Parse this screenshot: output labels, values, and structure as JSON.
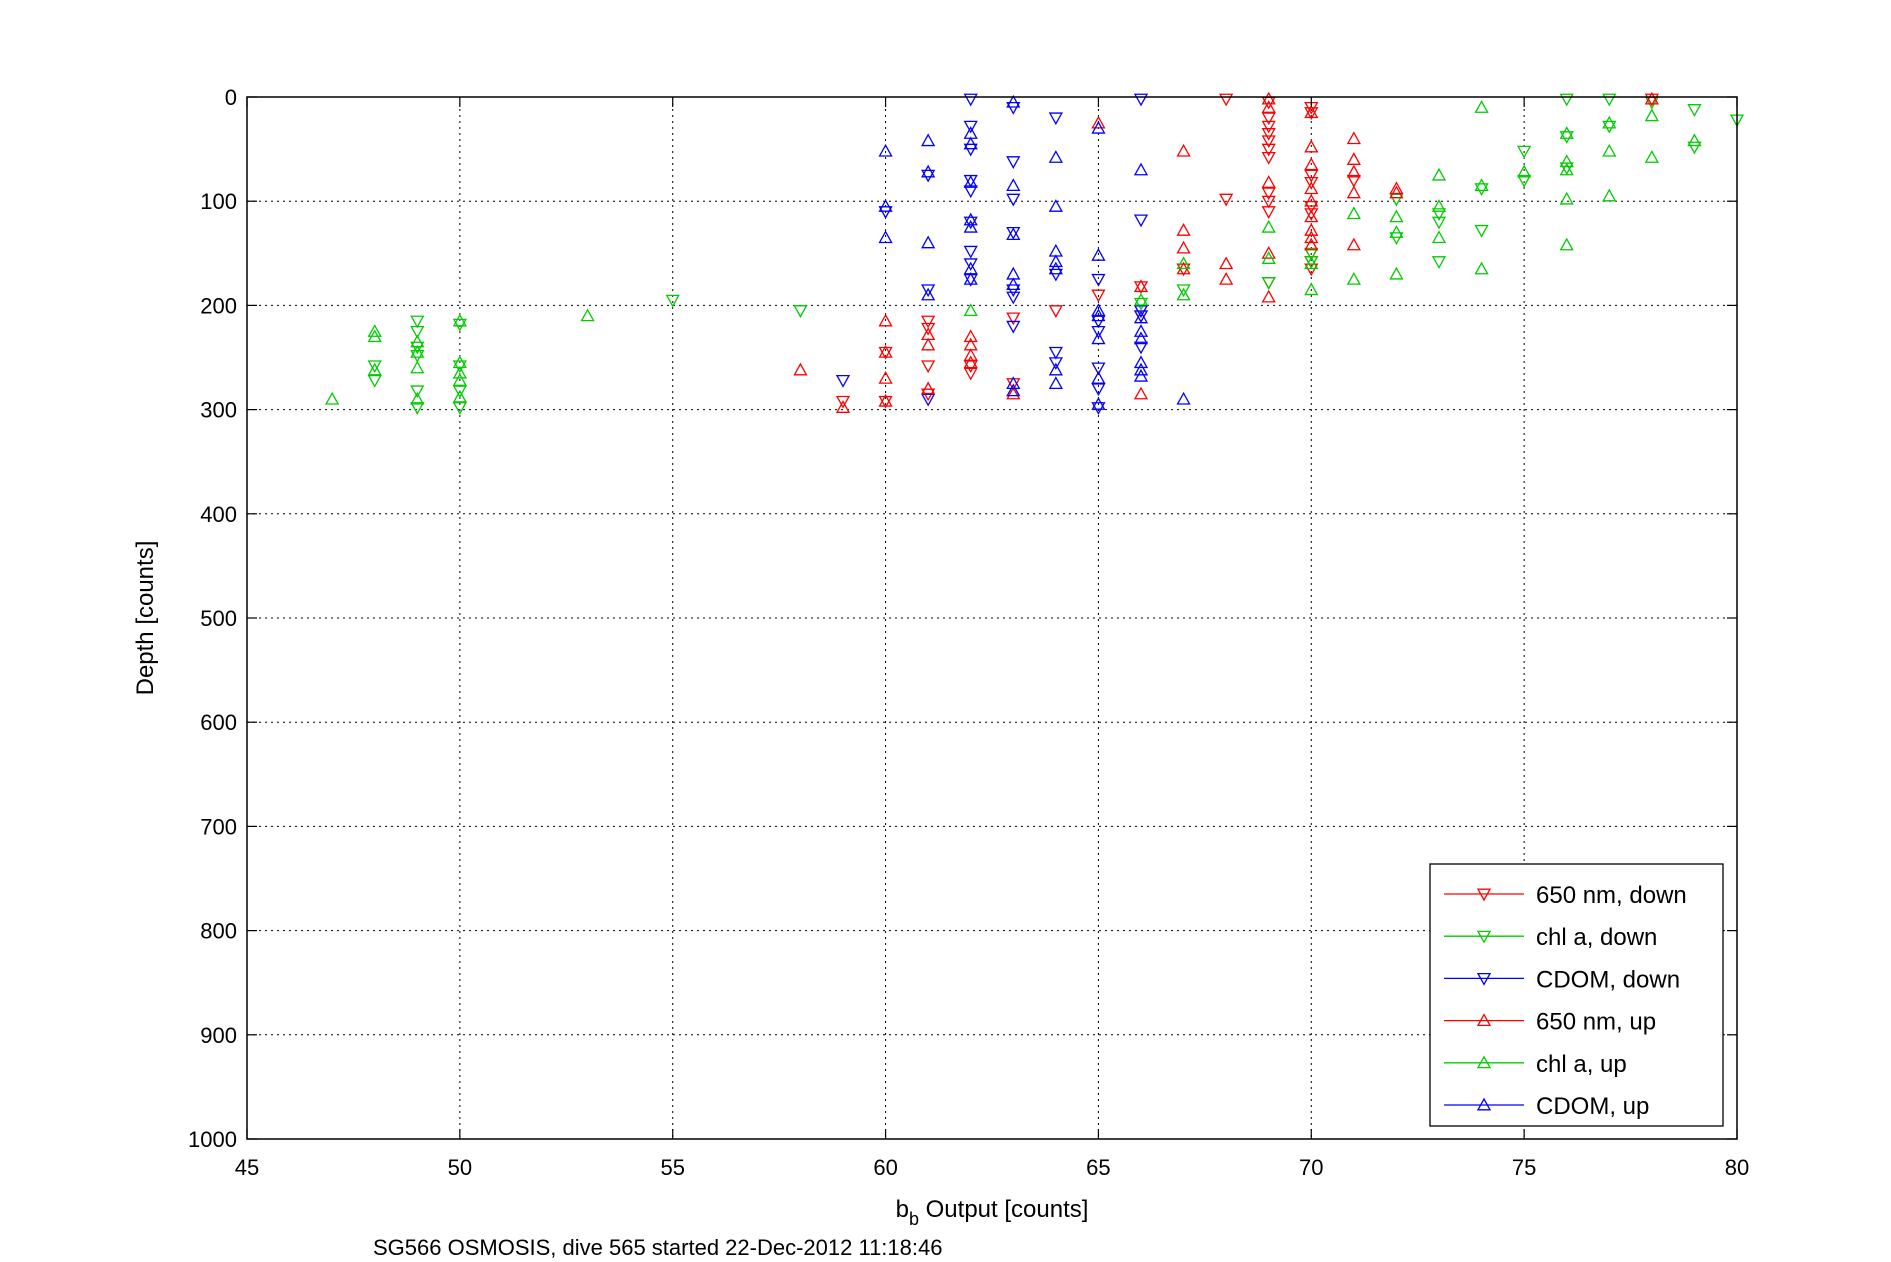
{
  "chart_data": {
    "type": "scatter",
    "title": "",
    "xlabel_main": "b",
    "xlabel_sub": "b",
    "xlabel_rest": " Output [counts]",
    "ylabel": "Depth [counts]",
    "caption": "SG566 OSMOSIS, dive 565 started 22-Dec-2012 11:18:46",
    "xlim": [
      45,
      80
    ],
    "ylim": [
      0,
      1000
    ],
    "y_reversed": true,
    "grid": true,
    "legend_placement": "bottom-right",
    "x_ticks": [
      45,
      50,
      55,
      60,
      65,
      70,
      75,
      80
    ],
    "y_ticks": [
      0,
      100,
      200,
      300,
      400,
      500,
      600,
      700,
      800,
      900,
      1000
    ],
    "series": [
      {
        "name": "650 nm, down",
        "color": "#ff0000",
        "marker": "triangle-down",
        "points": [
          [
            78,
            2
          ],
          [
            68,
            2
          ],
          [
            69,
            5
          ],
          [
            70,
            10
          ],
          [
            70,
            15
          ],
          [
            69,
            20
          ],
          [
            69,
            28
          ],
          [
            69,
            35
          ],
          [
            69,
            42
          ],
          [
            69,
            50
          ],
          [
            69,
            58
          ],
          [
            70,
            75
          ],
          [
            70,
            82
          ],
          [
            71,
            80
          ],
          [
            69,
            92
          ],
          [
            69,
            100
          ],
          [
            70,
            105
          ],
          [
            70,
            112
          ],
          [
            68,
            98
          ],
          [
            69,
            110
          ],
          [
            70,
            150
          ],
          [
            70,
            158
          ],
          [
            70,
            165
          ],
          [
            69,
            178
          ],
          [
            66,
            182
          ],
          [
            65,
            190
          ],
          [
            64,
            205
          ],
          [
            61,
            215
          ],
          [
            61,
            222
          ],
          [
            60,
            245
          ],
          [
            61,
            258
          ],
          [
            62,
            258
          ],
          [
            62,
            265
          ],
          [
            61,
            285
          ],
          [
            60,
            292
          ],
          [
            59,
            292
          ],
          [
            63,
            275
          ],
          [
            63,
            212
          ],
          [
            66,
            205
          ],
          [
            66,
            210
          ],
          [
            67,
            165
          ]
        ]
      },
      {
        "name": "chl a, down",
        "color": "#00cc00",
        "marker": "triangle-down",
        "points": [
          [
            77,
            2
          ],
          [
            76,
            2
          ],
          [
            78,
            5
          ],
          [
            79,
            12
          ],
          [
            80,
            22
          ],
          [
            77,
            28
          ],
          [
            76,
            38
          ],
          [
            79,
            48
          ],
          [
            75,
            52
          ],
          [
            76,
            68
          ],
          [
            75,
            80
          ],
          [
            74,
            88
          ],
          [
            73,
            112
          ],
          [
            72,
            98
          ],
          [
            73,
            120
          ],
          [
            74,
            128
          ],
          [
            73,
            158
          ],
          [
            72,
            135
          ],
          [
            70,
            150
          ],
          [
            70,
            158
          ],
          [
            69,
            178
          ],
          [
            67,
            185
          ],
          [
            66,
            198
          ],
          [
            58,
            205
          ],
          [
            55,
            195
          ],
          [
            50,
            218
          ],
          [
            49,
            215
          ],
          [
            49,
            225
          ],
          [
            49,
            240
          ],
          [
            49,
            248
          ],
          [
            48,
            258
          ],
          [
            48,
            272
          ],
          [
            50,
            258
          ],
          [
            50,
            282
          ],
          [
            49,
            282
          ],
          [
            49,
            298
          ],
          [
            50,
            298
          ]
        ]
      },
      {
        "name": "CDOM, down",
        "color": "#0000ff",
        "marker": "triangle-down",
        "points": [
          [
            62,
            2
          ],
          [
            63,
            10
          ],
          [
            62,
            28
          ],
          [
            62,
            50
          ],
          [
            64,
            20
          ],
          [
            63,
            62
          ],
          [
            62,
            80
          ],
          [
            62,
            90
          ],
          [
            61,
            75
          ],
          [
            63,
            98
          ],
          [
            62,
            120
          ],
          [
            63,
            130
          ],
          [
            62,
            148
          ],
          [
            62,
            160
          ],
          [
            64,
            170
          ],
          [
            63,
            185
          ],
          [
            63,
            192
          ],
          [
            63,
            220
          ],
          [
            61,
            185
          ],
          [
            60,
            110
          ],
          [
            62,
            175
          ],
          [
            65,
            175
          ],
          [
            65,
            215
          ],
          [
            65,
            225
          ],
          [
            66,
            240
          ],
          [
            66,
            205
          ],
          [
            66,
            210
          ],
          [
            65,
            260
          ],
          [
            65,
            280
          ],
          [
            65,
            298
          ],
          [
            64,
            245
          ],
          [
            64,
            255
          ],
          [
            59,
            272
          ],
          [
            61,
            290
          ],
          [
            66,
            2
          ],
          [
            66,
            118
          ]
        ]
      },
      {
        "name": "650 nm, up",
        "color": "#ff0000",
        "marker": "triangle-up",
        "points": [
          [
            78,
            2
          ],
          [
            69,
            2
          ],
          [
            69,
            10
          ],
          [
            70,
            15
          ],
          [
            65,
            25
          ],
          [
            71,
            40
          ],
          [
            70,
            48
          ],
          [
            71,
            60
          ],
          [
            70,
            65
          ],
          [
            71,
            72
          ],
          [
            67,
            52
          ],
          [
            70,
            88
          ],
          [
            69,
            82
          ],
          [
            72,
            88
          ],
          [
            71,
            92
          ],
          [
            70,
            100
          ],
          [
            70,
            115
          ],
          [
            72,
            92
          ],
          [
            70,
            128
          ],
          [
            70,
            135
          ],
          [
            70,
            142
          ],
          [
            71,
            142
          ],
          [
            69,
            150
          ],
          [
            68,
            160
          ],
          [
            67,
            165
          ],
          [
            67,
            145
          ],
          [
            67,
            128
          ],
          [
            68,
            175
          ],
          [
            69,
            192
          ],
          [
            66,
            182
          ],
          [
            62,
            230
          ],
          [
            62,
            238
          ],
          [
            61,
            228
          ],
          [
            61,
            238
          ],
          [
            60,
            215
          ],
          [
            62,
            248
          ],
          [
            62,
            255
          ],
          [
            60,
            245
          ],
          [
            60,
            270
          ],
          [
            58,
            262
          ],
          [
            61,
            280
          ],
          [
            60,
            292
          ],
          [
            66,
            285
          ],
          [
            63,
            285
          ],
          [
            59,
            298
          ]
        ]
      },
      {
        "name": "chl a, up",
        "color": "#00cc00",
        "marker": "triangle-up",
        "points": [
          [
            74,
            10
          ],
          [
            76,
            35
          ],
          [
            77,
            25
          ],
          [
            77,
            52
          ],
          [
            78,
            18
          ],
          [
            78,
            58
          ],
          [
            79,
            42
          ],
          [
            76,
            62
          ],
          [
            76,
            70
          ],
          [
            76,
            98
          ],
          [
            77,
            95
          ],
          [
            73,
            75
          ],
          [
            74,
            85
          ],
          [
            75,
            72
          ],
          [
            73,
            105
          ],
          [
            72,
            115
          ],
          [
            72,
            130
          ],
          [
            72,
            170
          ],
          [
            74,
            165
          ],
          [
            73,
            135
          ],
          [
            71,
            112
          ],
          [
            71,
            175
          ],
          [
            70,
            185
          ],
          [
            69,
            125
          ],
          [
            69,
            155
          ],
          [
            70,
            160
          ],
          [
            67,
            160
          ],
          [
            67,
            190
          ],
          [
            66,
            195
          ],
          [
            62,
            205
          ],
          [
            53,
            210
          ],
          [
            48,
            225
          ],
          [
            48,
            230
          ],
          [
            49,
            235
          ],
          [
            49,
            245
          ],
          [
            49,
            260
          ],
          [
            50,
            215
          ],
          [
            50,
            255
          ],
          [
            50,
            265
          ],
          [
            50,
            272
          ],
          [
            50,
            288
          ],
          [
            49,
            290
          ],
          [
            48,
            262
          ],
          [
            47,
            290
          ],
          [
            76,
            142
          ]
        ]
      },
      {
        "name": "CDOM, up",
        "color": "#0000ff",
        "marker": "triangle-up",
        "points": [
          [
            62,
            35
          ],
          [
            62,
            45
          ],
          [
            63,
            5
          ],
          [
            61,
            42
          ],
          [
            60,
            52
          ],
          [
            61,
            72
          ],
          [
            62,
            82
          ],
          [
            63,
            85
          ],
          [
            62,
            118
          ],
          [
            62,
            125
          ],
          [
            63,
            132
          ],
          [
            64,
            58
          ],
          [
            64,
            105
          ],
          [
            65,
            30
          ],
          [
            66,
            70
          ],
          [
            64,
            148
          ],
          [
            64,
            158
          ],
          [
            65,
            152
          ],
          [
            62,
            165
          ],
          [
            61,
            140
          ],
          [
            63,
            170
          ],
          [
            62,
            175
          ],
          [
            64,
            165
          ],
          [
            63,
            180
          ],
          [
            61,
            190
          ],
          [
            60,
            105
          ],
          [
            60,
            135
          ],
          [
            65,
            205
          ],
          [
            65,
            210
          ],
          [
            66,
            225
          ],
          [
            66,
            232
          ],
          [
            65,
            232
          ],
          [
            66,
            255
          ],
          [
            66,
            262
          ],
          [
            66,
            268
          ],
          [
            64,
            262
          ],
          [
            64,
            275
          ],
          [
            65,
            270
          ],
          [
            63,
            275
          ],
          [
            63,
            282
          ],
          [
            67,
            290
          ],
          [
            65,
            295
          ],
          [
            66,
            212
          ]
        ]
      }
    ]
  }
}
